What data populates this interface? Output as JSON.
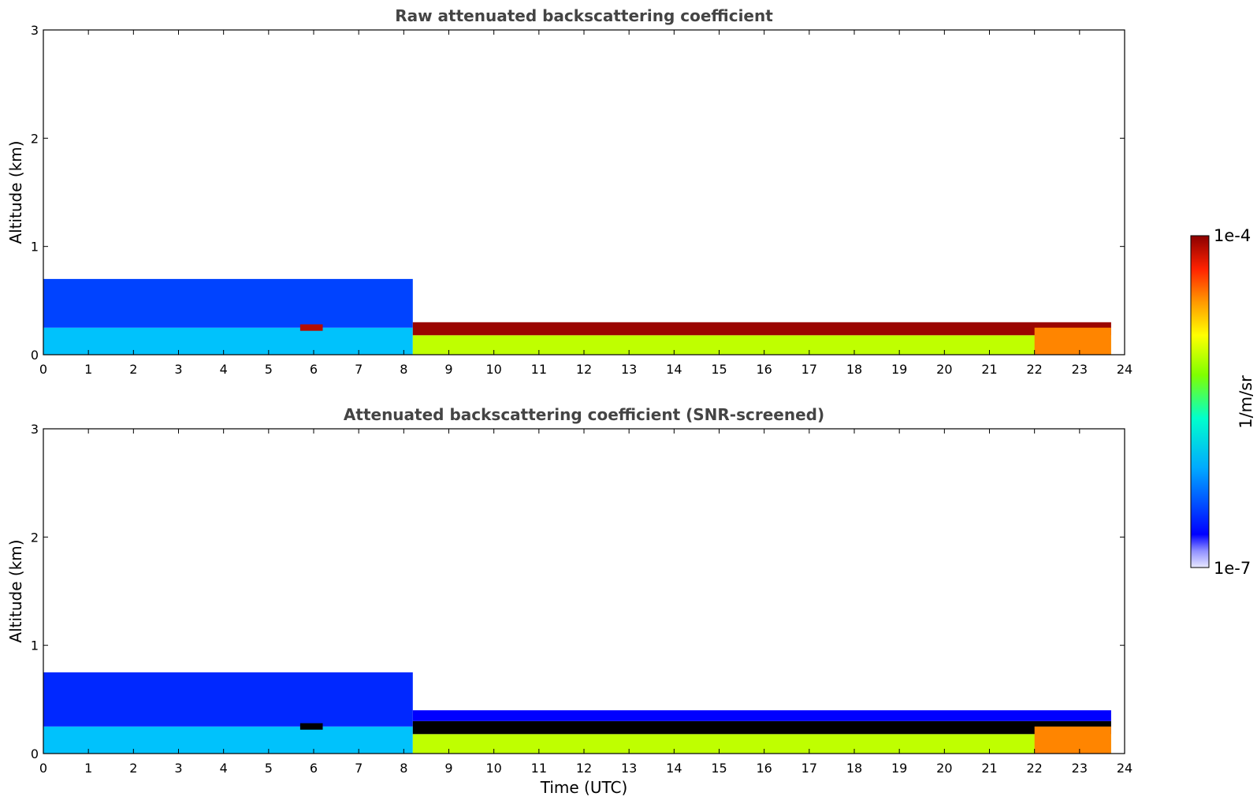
{
  "colormap": [
    "#0000ff",
    "#00bfff",
    "#00ffcc",
    "#7fff00",
    "#ffff00",
    "#ffa500",
    "#ff2400",
    "#8b0000"
  ],
  "colorbar": {
    "top_label": "1e-4",
    "bottom_label": "1e-7",
    "unit_label": "1/m/sr"
  },
  "chart_data": [
    {
      "type": "heatmap",
      "title": "Raw attenuated backscattering coefficient",
      "xlabel": "",
      "ylabel": "Altitude (km)",
      "xlim": [
        0,
        24
      ],
      "ylim": [
        0,
        3
      ],
      "xticks": [
        "0",
        "1",
        "2",
        "3",
        "4",
        "5",
        "6",
        "7",
        "8",
        "9",
        "10",
        "11",
        "12",
        "13",
        "14",
        "15",
        "16",
        "17",
        "18",
        "19",
        "20",
        "21",
        "22",
        "23",
        "24"
      ],
      "yticks": [
        "0",
        "1",
        "2",
        "3"
      ],
      "colorscale": "log",
      "clim": [
        "1e-7",
        "1e-4"
      ],
      "data_end_time": 23.7,
      "layers": [
        {
          "from": 0.0,
          "to": 8.2,
          "base_km": 0.0,
          "top_km": 0.25,
          "level": 0.15
        },
        {
          "from": 0.0,
          "to": 8.2,
          "base_km": 0.25,
          "top_km": 0.7,
          "level": 0.05
        },
        {
          "from": 5.7,
          "to": 6.2,
          "base_km": 0.22,
          "top_km": 0.28,
          "level": 0.95
        },
        {
          "from": 8.2,
          "to": 23.7,
          "base_km": 0.0,
          "top_km": 0.18,
          "level": 0.5
        },
        {
          "from": 8.2,
          "to": 23.7,
          "base_km": 0.18,
          "top_km": 0.3,
          "level": 0.98
        },
        {
          "from": 22.0,
          "to": 23.7,
          "base_km": 0.0,
          "top_km": 0.25,
          "level": 0.75
        }
      ]
    },
    {
      "type": "heatmap",
      "title": "Attenuated backscattering coefficient (SNR-screened)",
      "xlabel": "Time (UTC)",
      "ylabel": "Altitude (km)",
      "xlim": [
        0,
        24
      ],
      "ylim": [
        0,
        3
      ],
      "xticks": [
        "0",
        "1",
        "2",
        "3",
        "4",
        "5",
        "6",
        "7",
        "8",
        "9",
        "10",
        "11",
        "12",
        "13",
        "14",
        "15",
        "16",
        "17",
        "18",
        "19",
        "20",
        "21",
        "22",
        "23",
        "24"
      ],
      "yticks": [
        "0",
        "1",
        "2",
        "3"
      ],
      "colorscale": "log",
      "clim": [
        "1e-7",
        "1e-4"
      ],
      "data_end_time": 23.7,
      "masked_color": "#000000",
      "layers": [
        {
          "from": 0.0,
          "to": 8.2,
          "base_km": 0.0,
          "top_km": 0.25,
          "level": 0.15
        },
        {
          "from": 0.0,
          "to": 8.2,
          "base_km": 0.25,
          "top_km": 0.75,
          "level": 0.03
        },
        {
          "from": 5.7,
          "to": 6.2,
          "base_km": 0.22,
          "top_km": 0.28,
          "level": -1
        },
        {
          "from": 8.2,
          "to": 23.7,
          "base_km": 0.0,
          "top_km": 0.18,
          "level": 0.5
        },
        {
          "from": 8.2,
          "to": 23.7,
          "base_km": 0.18,
          "top_km": 0.3,
          "level": -1
        },
        {
          "from": 8.2,
          "to": 23.7,
          "base_km": 0.3,
          "top_km": 0.4,
          "level": 0.0
        },
        {
          "from": 22.0,
          "to": 23.7,
          "base_km": 0.0,
          "top_km": 0.25,
          "level": 0.75
        }
      ]
    }
  ]
}
